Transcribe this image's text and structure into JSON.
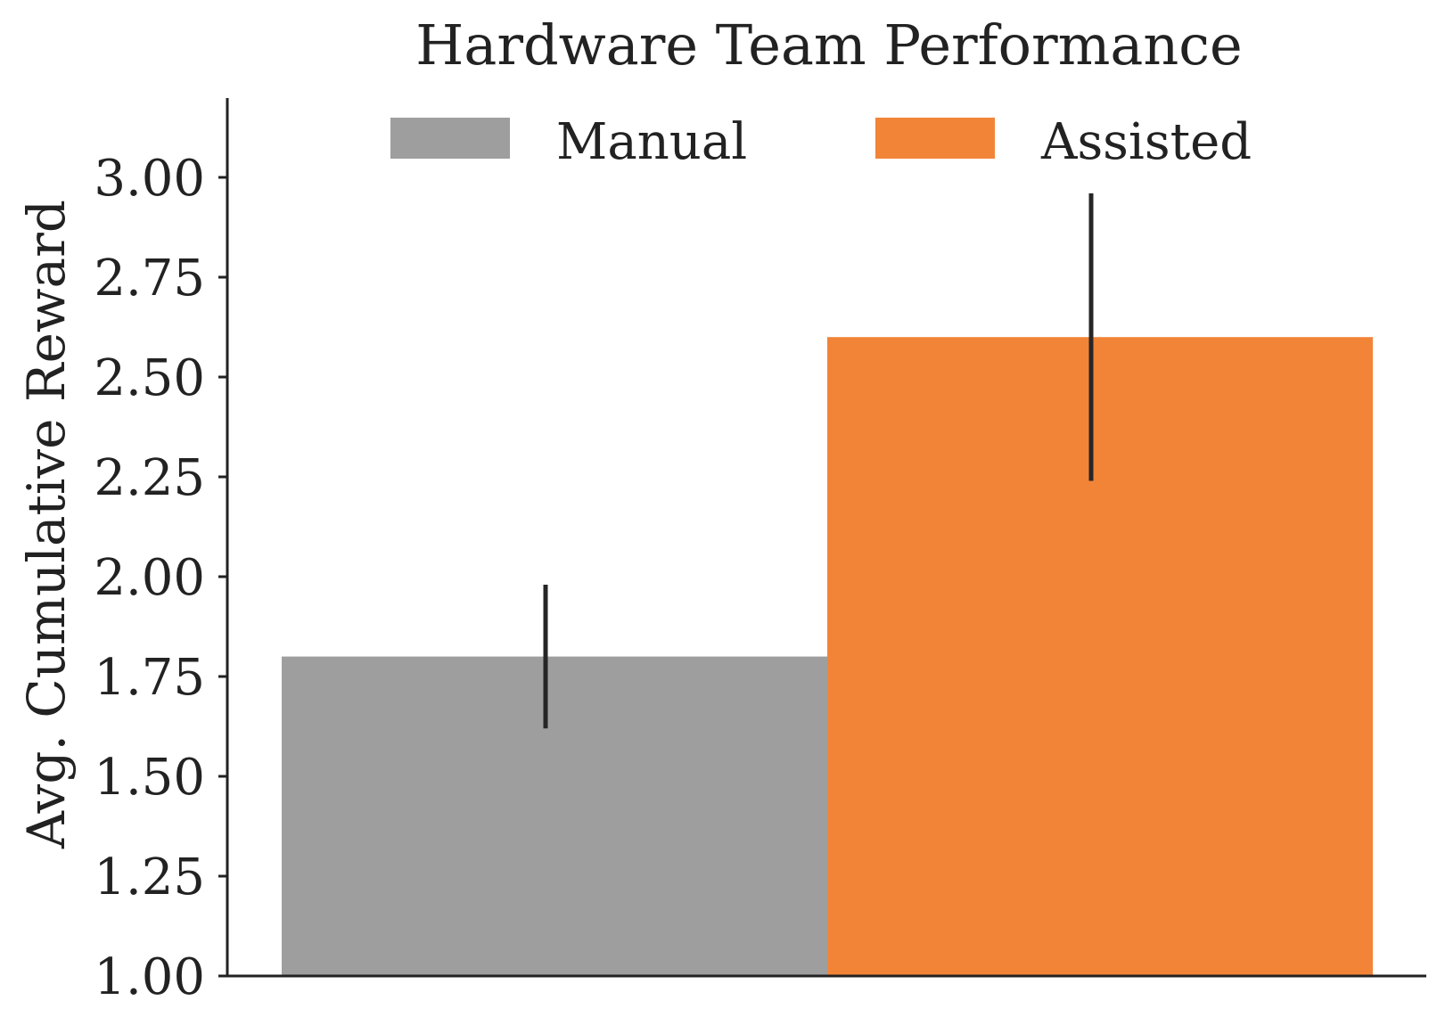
{
  "chart_data": {
    "type": "bar",
    "title": "Hardware Team Performance",
    "ylabel": "Avg. Cumulative Reward",
    "xlabel": "",
    "ylim": [
      1.0,
      3.2
    ],
    "yticks": [
      "1.00",
      "1.25",
      "1.50",
      "1.75",
      "2.00",
      "2.25",
      "2.50",
      "2.75",
      "3.00"
    ],
    "grid": false,
    "legend_position": "top",
    "series": [
      {
        "name": "Manual",
        "value": 1.8,
        "error_low": 1.62,
        "error_high": 1.98,
        "color": "#9e9e9e"
      },
      {
        "name": "Assisted",
        "value": 2.6,
        "error_low": 2.24,
        "error_high": 2.96,
        "color": "#f28438"
      }
    ]
  }
}
